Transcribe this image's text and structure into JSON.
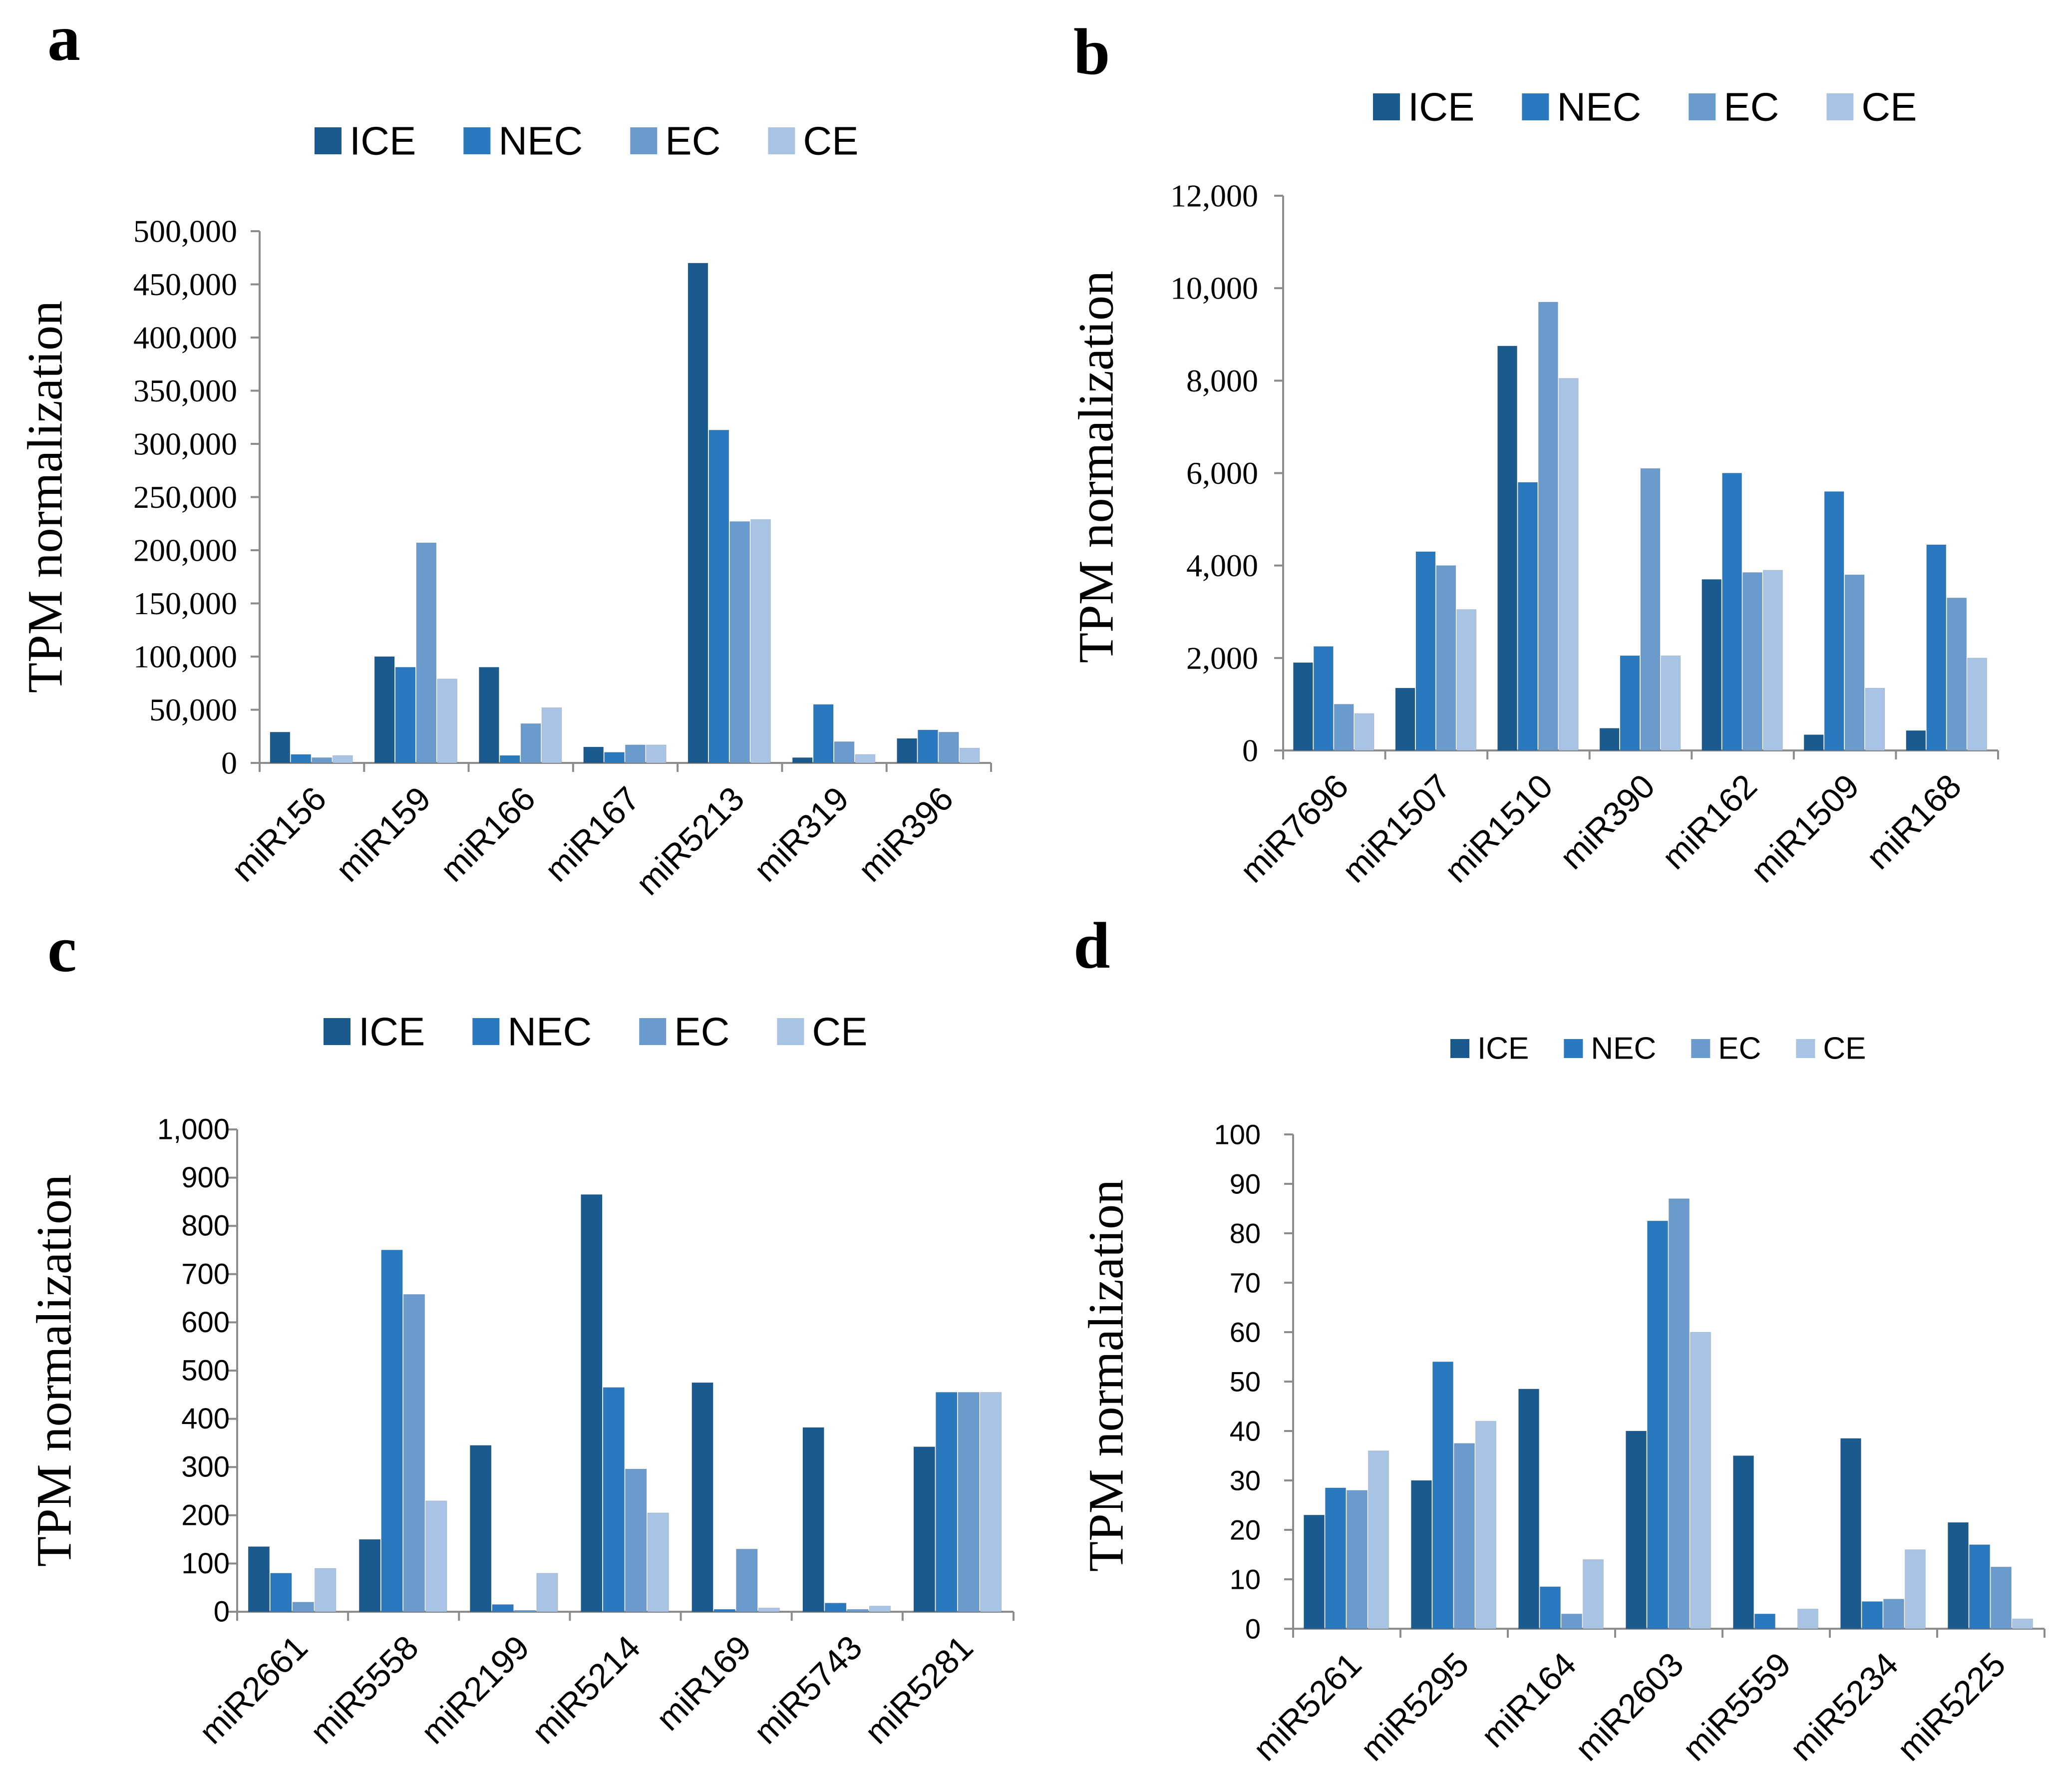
{
  "colors": {
    "ICE": "#1b5a8e",
    "NEC": "#2a78bd",
    "EC": "#6b9bcc",
    "CE": "#a8c3e3"
  },
  "chart_data": [
    {
      "panel": "a",
      "type": "bar",
      "ylabel": "TPM normalization",
      "legend": [
        "ICE",
        "NEC",
        "EC",
        "CE"
      ],
      "categories": [
        "miR156",
        "miR159",
        "miR166",
        "miR167",
        "miR5213",
        "miR319",
        "miR396"
      ],
      "series": [
        {
          "name": "ICE",
          "values": [
            29000,
            100000,
            90000,
            15000,
            470000,
            5000,
            23000
          ]
        },
        {
          "name": "NEC",
          "values": [
            8000,
            90000,
            7000,
            10000,
            313000,
            55000,
            31000
          ]
        },
        {
          "name": "EC",
          "values": [
            5000,
            207000,
            37000,
            17000,
            227000,
            20000,
            29000
          ]
        },
        {
          "name": "CE",
          "values": [
            7000,
            79000,
            52000,
            17000,
            229000,
            8000,
            14000
          ]
        }
      ],
      "ylim": [
        0,
        500000
      ],
      "yticks": [
        "0",
        "50,000",
        "100,000",
        "150,000",
        "200,000",
        "250,000",
        "300,000",
        "350,000",
        "400,000",
        "450,000",
        "500,000"
      ]
    },
    {
      "panel": "b",
      "type": "bar",
      "ylabel": "TPM normalization",
      "legend": [
        "ICE",
        "NEC",
        "EC",
        "CE"
      ],
      "categories": [
        "miR7696",
        "miR1507",
        "miR1510",
        "miR390",
        "miR162",
        "miR1509",
        "miR168"
      ],
      "series": [
        {
          "name": "ICE",
          "values": [
            1900,
            1350,
            8750,
            480,
            3700,
            340,
            430
          ]
        },
        {
          "name": "NEC",
          "values": [
            2250,
            4300,
            5800,
            2050,
            6000,
            5600,
            4450
          ]
        },
        {
          "name": "EC",
          "values": [
            1000,
            4000,
            9700,
            6100,
            3850,
            3800,
            3300
          ]
        },
        {
          "name": "CE",
          "values": [
            800,
            3050,
            8050,
            2050,
            3900,
            1350,
            2000
          ]
        }
      ],
      "ylim": [
        0,
        12000
      ],
      "yticks": [
        "0",
        "2,000",
        "4,000",
        "6,000",
        "8,000",
        "10,000",
        "12,000"
      ]
    },
    {
      "panel": "c",
      "type": "bar",
      "ylabel": "TPM normalization",
      "legend": [
        "ICE",
        "NEC",
        "EC",
        "CE"
      ],
      "categories": [
        "miR2661",
        "miR5558",
        "miR2199",
        "miR5214",
        "miR169",
        "miR5743",
        "miR5281"
      ],
      "series": [
        {
          "name": "ICE",
          "values": [
            135,
            150,
            345,
            865,
            475,
            382,
            342
          ]
        },
        {
          "name": "NEC",
          "values": [
            80,
            750,
            15,
            465,
            5,
            18,
            455
          ]
        },
        {
          "name": "EC",
          "values": [
            20,
            658,
            3,
            296,
            130,
            5,
            455
          ]
        },
        {
          "name": "CE",
          "values": [
            90,
            230,
            80,
            205,
            8,
            12,
            455
          ]
        }
      ],
      "ylim": [
        0,
        1000
      ],
      "yticks": [
        "0",
        "100",
        "200",
        "300",
        "400",
        "500",
        "600",
        "700",
        "800",
        "900",
        "1,000"
      ]
    },
    {
      "panel": "d",
      "type": "bar",
      "ylabel": "TPM normalization",
      "legend": [
        "ICE",
        "NEC",
        "EC",
        "CE"
      ],
      "categories": [
        "miR5261",
        "miR5295",
        "miR164",
        "miR2603",
        "miR5559",
        "miR5234",
        "miR5225"
      ],
      "series": [
        {
          "name": "ICE",
          "values": [
            23,
            30,
            48.5,
            40,
            35,
            38.5,
            21.5
          ]
        },
        {
          "name": "NEC",
          "values": [
            28.5,
            54,
            8.5,
            82.5,
            3,
            5.5,
            17
          ]
        },
        {
          "name": "EC",
          "values": [
            28,
            37.5,
            3,
            87,
            0,
            6,
            12.5
          ]
        },
        {
          "name": "CE",
          "values": [
            36,
            42,
            14,
            60,
            4,
            16,
            2
          ]
        }
      ],
      "ylim": [
        0,
        100
      ],
      "yticks": [
        "0",
        "10",
        "20",
        "30",
        "40",
        "50",
        "60",
        "70",
        "80",
        "90",
        "100"
      ]
    }
  ]
}
